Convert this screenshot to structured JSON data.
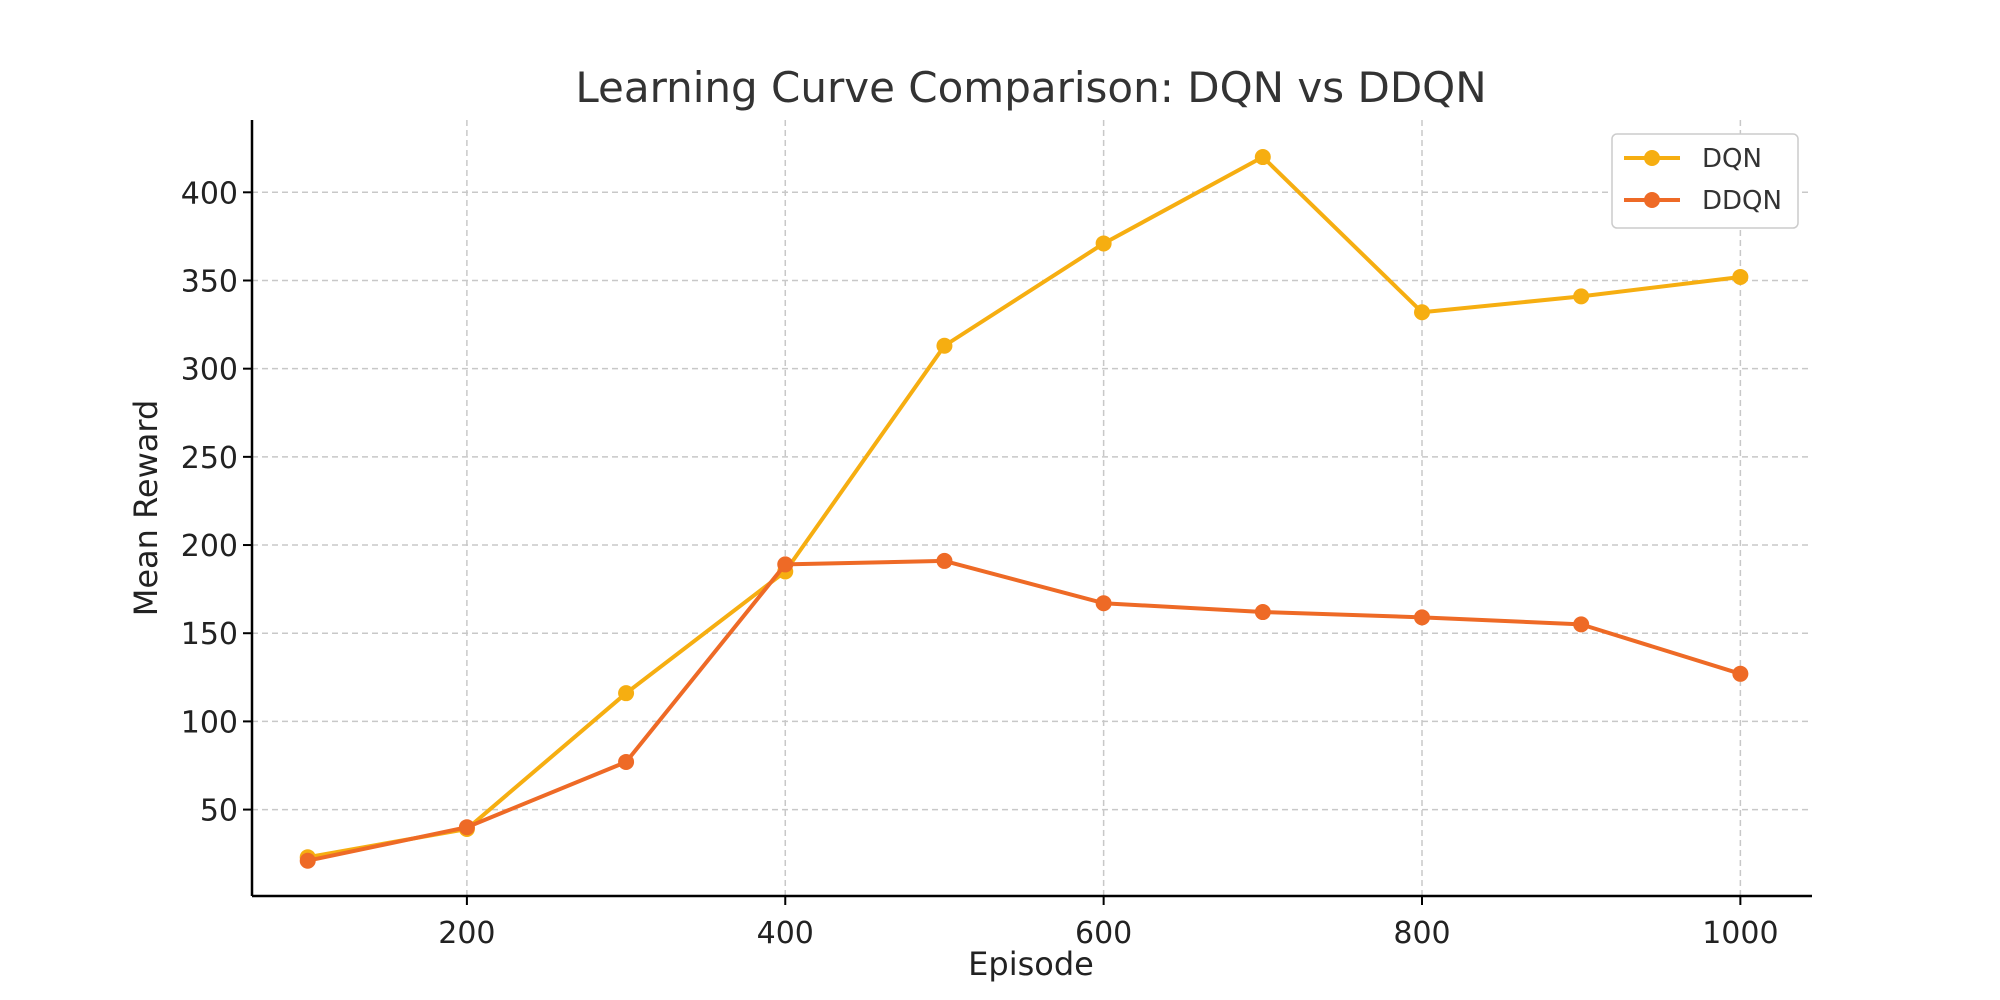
{
  "chart_data": {
    "type": "line",
    "title": "Learning Curve Comparison: DQN vs DDQN",
    "xlabel": "Episode",
    "ylabel": "Mean Reward",
    "xlim": [
      65,
      1045
    ],
    "ylim": [
      1,
      441
    ],
    "xticks": [
      200,
      400,
      600,
      800,
      1000
    ],
    "yticks": [
      50,
      100,
      150,
      200,
      250,
      300,
      350,
      400
    ],
    "grid": true,
    "legend_position": "top-right",
    "x": [
      100,
      200,
      300,
      400,
      500,
      600,
      700,
      800,
      900,
      1000
    ],
    "series": [
      {
        "name": "DQN",
        "color": "#F6AE11",
        "values": [
          23,
          39,
          116,
          185,
          313,
          371,
          420,
          332,
          341,
          352
        ]
      },
      {
        "name": "DDQN",
        "color": "#EE6A26",
        "values": [
          21,
          40,
          77,
          189,
          191,
          167,
          162,
          159,
          155,
          127
        ]
      }
    ]
  }
}
